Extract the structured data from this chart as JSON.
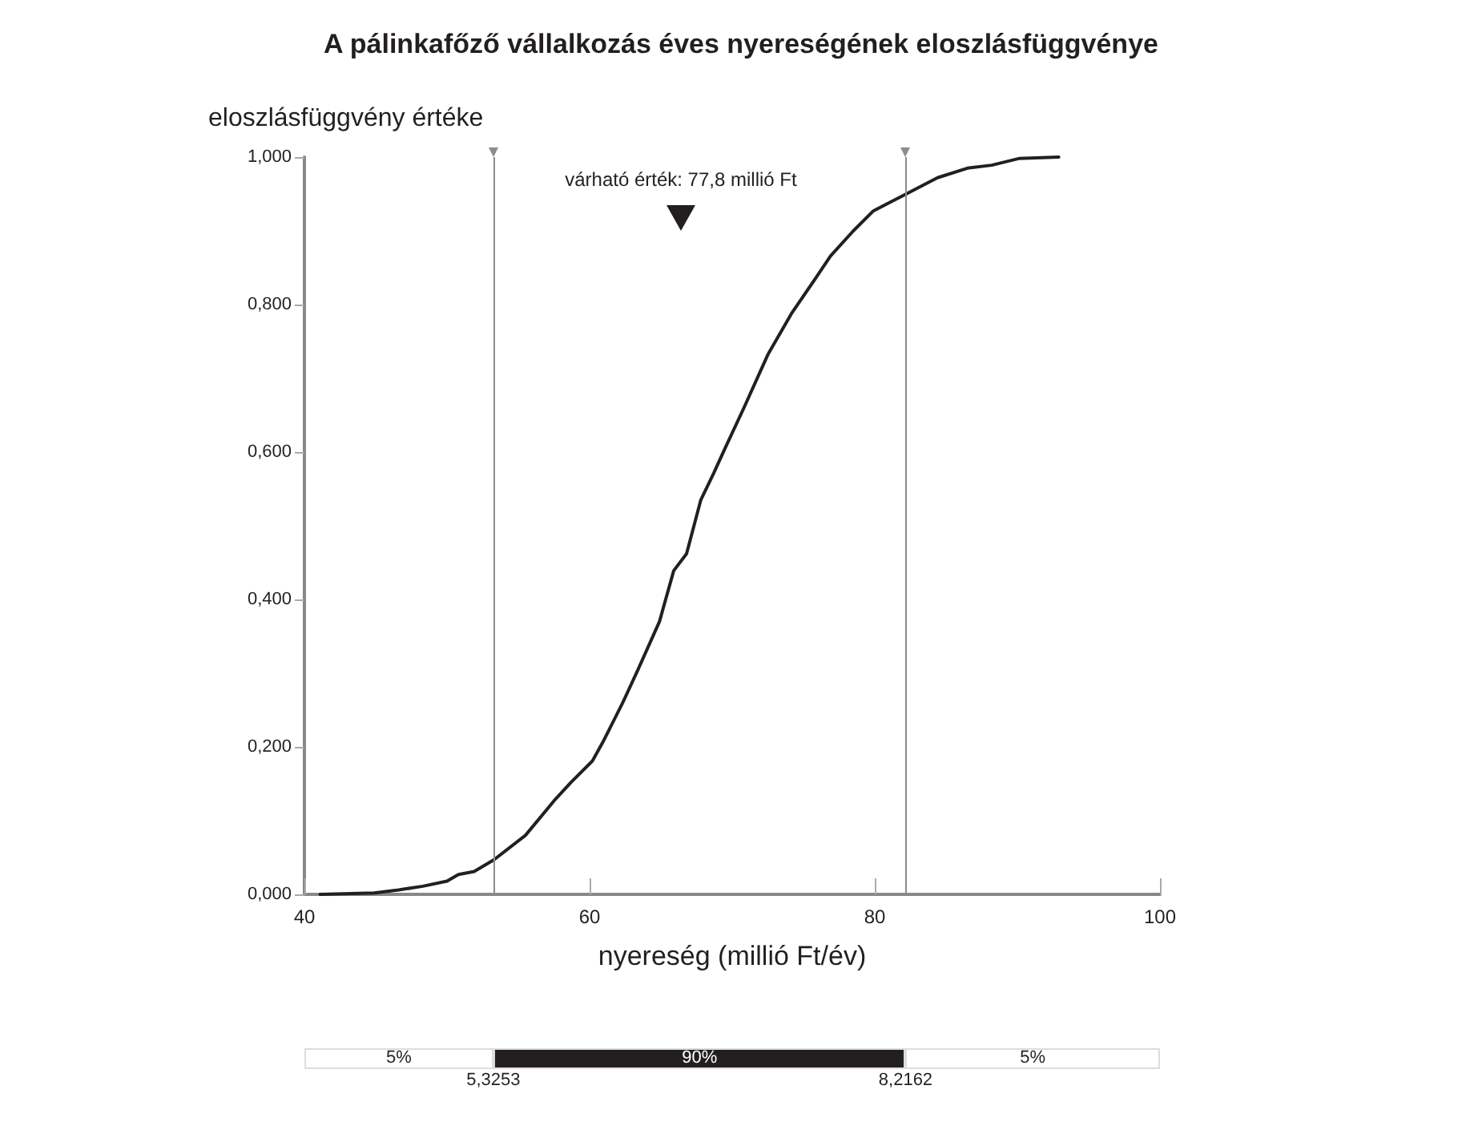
{
  "chart_data": [
    {
      "type": "line",
      "title": "A pálinkafőző vállalkozás éves nyereségének eloszlásfüggvénye",
      "xlabel": "nyereség (millió Ft/év)",
      "ylabel": "eloszlásfüggvény értéke",
      "x": [
        41.1,
        44.9,
        46.6,
        48.3,
        50.0,
        50.8,
        51.9,
        53.3,
        55.5,
        57.6,
        58.7,
        60.2,
        61.0,
        62.3,
        63.4,
        64.9,
        65.9,
        66.8,
        67.8,
        68.7,
        69.5,
        70.8,
        72.5,
        74.2,
        75.9,
        76.9,
        78.5,
        79.9,
        82.1,
        84.4,
        86.5,
        88.2,
        90.1,
        92.9
      ],
      "series": [
        {
          "color": "#231f20",
          "values": [
            0,
            0.002,
            0.006,
            0.011,
            0.018,
            0.027,
            0.031,
            0.047,
            0.08,
            0.129,
            0.152,
            0.181,
            0.209,
            0.259,
            0.305,
            0.37,
            0.439,
            0.462,
            0.535,
            0.571,
            0.605,
            0.659,
            0.732,
            0.789,
            0.837,
            0.866,
            0.9,
            0.927,
            0.949,
            0.972,
            0.985,
            0.989,
            0.998,
            1.0
          ]
        }
      ],
      "xlim": [
        40,
        100
      ],
      "ylim": [
        0,
        1
      ],
      "xticks": [
        40,
        60,
        80,
        100
      ],
      "yticks": [
        {
          "value": 0,
          "label": "0,000"
        },
        {
          "value": 0.2,
          "label": "0,200"
        },
        {
          "value": 0.4,
          "label": "0,400"
        },
        {
          "value": 0.6,
          "label": "0,600"
        },
        {
          "value": 0.8,
          "label": "0,800"
        },
        {
          "value": 1,
          "label": "1,000"
        }
      ],
      "grid": false,
      "marker": "none",
      "line_style": "solid",
      "ref_lines": [
        {
          "axis": "x",
          "value": 53.253,
          "color": "#8c8c8c"
        },
        {
          "axis": "x",
          "value": 82.162,
          "color": "#8c8c8c"
        }
      ],
      "annotations": [
        "várható érték: 77,8 millió Ft"
      ]
    },
    {
      "type": "other",
      "annotations": [
        "5%",
        "90%",
        "5%",
        "5,3253",
        "8,2162"
      ]
    }
  ]
}
